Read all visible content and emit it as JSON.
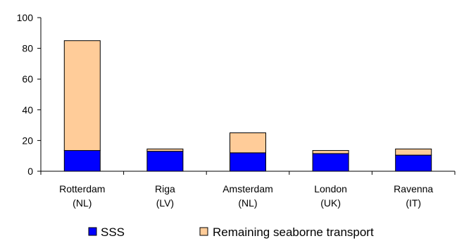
{
  "chart_data": {
    "type": "bar",
    "stacked": true,
    "title": "",
    "xlabel": "",
    "ylabel": "",
    "ylim": [
      0,
      100
    ],
    "yticks": [
      0,
      20,
      40,
      60,
      80,
      100
    ],
    "grid": false,
    "legend_position": "bottom",
    "categories": [
      [
        "Rotterdam",
        "(NL)"
      ],
      [
        "Riga",
        "(LV)"
      ],
      [
        "Amsterdam",
        "(NL)"
      ],
      [
        "London",
        "(UK)"
      ],
      [
        "Ravenna",
        "(IT)"
      ]
    ],
    "series": [
      {
        "name": "SSS",
        "color": "#0000ff",
        "values": [
          13.5,
          13,
          12,
          11.5,
          10.5
        ]
      },
      {
        "name": "Remaining seaborne transport",
        "color": "#ffcc99",
        "values": [
          71.5,
          1.5,
          13,
          2,
          4
        ]
      }
    ]
  }
}
